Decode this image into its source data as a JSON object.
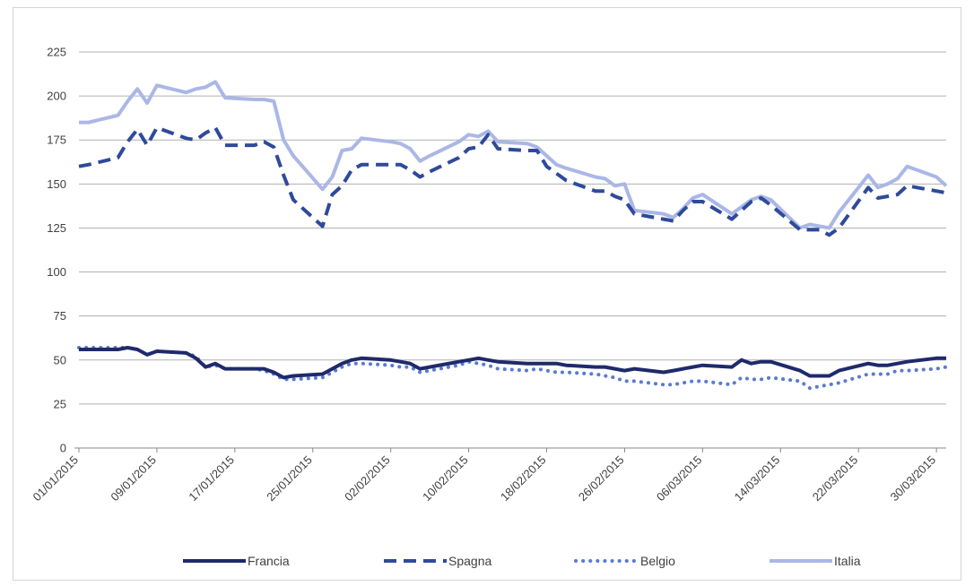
{
  "chart_data": {
    "type": "line",
    "title": "",
    "xlabel": "",
    "ylabel": "",
    "ylim": [
      0,
      225
    ],
    "y_ticks": [
      0,
      25,
      50,
      75,
      100,
      125,
      150,
      175,
      200,
      225
    ],
    "x_range": [
      "01/01/2015",
      "31/03/2015"
    ],
    "x_tick_labels": [
      "01/01/2015",
      "09/01/2015",
      "17/01/2015",
      "25/01/2015",
      "02/02/2015",
      "10/02/2015",
      "18/02/2015",
      "26/02/2015",
      "06/03/2015",
      "14/03/2015",
      "22/03/2015",
      "30/03/2015"
    ],
    "grid": "horizontal",
    "legend_position": "bottom",
    "series": [
      {
        "name": "Francia",
        "color": "#1f2a6b",
        "style": "solid",
        "points": [
          [
            "01/01/2015",
            56
          ],
          [
            "02/01/2015",
            56
          ],
          [
            "05/01/2015",
            56
          ],
          [
            "06/01/2015",
            57
          ],
          [
            "07/01/2015",
            56
          ],
          [
            "08/01/2015",
            53
          ],
          [
            "09/01/2015",
            55
          ],
          [
            "12/01/2015",
            54
          ],
          [
            "13/01/2015",
            51
          ],
          [
            "14/01/2015",
            46
          ],
          [
            "15/01/2015",
            48
          ],
          [
            "16/01/2015",
            45
          ],
          [
            "19/01/2015",
            45
          ],
          [
            "20/01/2015",
            45
          ],
          [
            "21/01/2015",
            43
          ],
          [
            "22/01/2015",
            40
          ],
          [
            "23/01/2015",
            41
          ],
          [
            "26/01/2015",
            42
          ],
          [
            "27/01/2015",
            45
          ],
          [
            "28/01/2015",
            48
          ],
          [
            "29/01/2015",
            50
          ],
          [
            "30/01/2015",
            51
          ],
          [
            "02/02/2015",
            50
          ],
          [
            "03/02/2015",
            49
          ],
          [
            "04/02/2015",
            48
          ],
          [
            "05/02/2015",
            45
          ],
          [
            "06/02/2015",
            46
          ],
          [
            "09/02/2015",
            49
          ],
          [
            "10/02/2015",
            50
          ],
          [
            "11/02/2015",
            51
          ],
          [
            "12/02/2015",
            50
          ],
          [
            "13/02/2015",
            49
          ],
          [
            "16/02/2015",
            48
          ],
          [
            "17/02/2015",
            48
          ],
          [
            "18/02/2015",
            48
          ],
          [
            "19/02/2015",
            48
          ],
          [
            "20/02/2015",
            47
          ],
          [
            "23/02/2015",
            46
          ],
          [
            "24/02/2015",
            46
          ],
          [
            "25/02/2015",
            45
          ],
          [
            "26/02/2015",
            44
          ],
          [
            "27/02/2015",
            45
          ],
          [
            "02/03/2015",
            43
          ],
          [
            "03/03/2015",
            44
          ],
          [
            "04/03/2015",
            45
          ],
          [
            "05/03/2015",
            46
          ],
          [
            "06/03/2015",
            47
          ],
          [
            "09/03/2015",
            46
          ],
          [
            "10/03/2015",
            50
          ],
          [
            "11/03/2015",
            48
          ],
          [
            "12/03/2015",
            49
          ],
          [
            "13/03/2015",
            49
          ],
          [
            "16/03/2015",
            44
          ],
          [
            "17/03/2015",
            41
          ],
          [
            "18/03/2015",
            41
          ],
          [
            "19/03/2015",
            41
          ],
          [
            "20/03/2015",
            44
          ],
          [
            "23/03/2015",
            48
          ],
          [
            "24/03/2015",
            47
          ],
          [
            "25/03/2015",
            47
          ],
          [
            "26/03/2015",
            48
          ],
          [
            "27/03/2015",
            49
          ],
          [
            "30/03/2015",
            51
          ],
          [
            "31/03/2015",
            51
          ]
        ]
      },
      {
        "name": "Spagna",
        "color": "#2e4a9a",
        "style": "dashed",
        "points": [
          [
            "01/01/2015",
            160
          ],
          [
            "02/01/2015",
            161
          ],
          [
            "05/01/2015",
            165
          ],
          [
            "06/01/2015",
            174
          ],
          [
            "07/01/2015",
            181
          ],
          [
            "08/01/2015",
            172
          ],
          [
            "09/01/2015",
            182
          ],
          [
            "12/01/2015",
            176
          ],
          [
            "13/01/2015",
            175
          ],
          [
            "14/01/2015",
            179
          ],
          [
            "15/01/2015",
            182
          ],
          [
            "16/01/2015",
            172
          ],
          [
            "19/01/2015",
            172
          ],
          [
            "20/01/2015",
            174
          ],
          [
            "21/01/2015",
            171
          ],
          [
            "22/01/2015",
            155
          ],
          [
            "23/01/2015",
            141
          ],
          [
            "26/01/2015",
            126
          ],
          [
            "27/01/2015",
            144
          ],
          [
            "28/01/2015",
            149
          ],
          [
            "29/01/2015",
            158
          ],
          [
            "30/01/2015",
            161
          ],
          [
            "02/02/2015",
            161
          ],
          [
            "03/02/2015",
            161
          ],
          [
            "04/02/2015",
            158
          ],
          [
            "05/02/2015",
            154
          ],
          [
            "06/02/2015",
            157
          ],
          [
            "09/02/2015",
            165
          ],
          [
            "10/02/2015",
            170
          ],
          [
            "11/02/2015",
            171
          ],
          [
            "12/02/2015",
            178
          ],
          [
            "13/02/2015",
            170
          ],
          [
            "16/02/2015",
            169
          ],
          [
            "17/02/2015",
            169
          ],
          [
            "18/02/2015",
            160
          ],
          [
            "19/02/2015",
            156
          ],
          [
            "20/02/2015",
            152
          ],
          [
            "23/02/2015",
            146
          ],
          [
            "24/02/2015",
            146
          ],
          [
            "25/02/2015",
            143
          ],
          [
            "26/02/2015",
            141
          ],
          [
            "27/02/2015",
            133
          ],
          [
            "02/03/2015",
            130
          ],
          [
            "03/03/2015",
            129
          ],
          [
            "04/03/2015",
            135
          ],
          [
            "05/03/2015",
            140
          ],
          [
            "06/03/2015",
            140
          ],
          [
            "09/03/2015",
            130
          ],
          [
            "10/03/2015",
            135
          ],
          [
            "11/03/2015",
            140
          ],
          [
            "12/03/2015",
            142
          ],
          [
            "13/03/2015",
            138
          ],
          [
            "16/03/2015",
            124
          ],
          [
            "17/03/2015",
            124
          ],
          [
            "18/03/2015",
            124
          ],
          [
            "19/03/2015",
            121
          ],
          [
            "20/03/2015",
            125
          ],
          [
            "23/03/2015",
            148
          ],
          [
            "24/03/2015",
            142
          ],
          [
            "25/03/2015",
            143
          ],
          [
            "26/03/2015",
            144
          ],
          [
            "27/03/2015",
            149
          ],
          [
            "30/03/2015",
            146
          ],
          [
            "31/03/2015",
            145
          ]
        ]
      },
      {
        "name": "Belgio",
        "color": "#5b7ad0",
        "style": "dotted",
        "points": [
          [
            "01/01/2015",
            57
          ],
          [
            "02/01/2015",
            57
          ],
          [
            "05/01/2015",
            57
          ],
          [
            "06/01/2015",
            57
          ],
          [
            "07/01/2015",
            56
          ],
          [
            "08/01/2015",
            53
          ],
          [
            "09/01/2015",
            55
          ],
          [
            "12/01/2015",
            54
          ],
          [
            "13/01/2015",
            52
          ],
          [
            "14/01/2015",
            46
          ],
          [
            "15/01/2015",
            47
          ],
          [
            "16/01/2015",
            45
          ],
          [
            "19/01/2015",
            45
          ],
          [
            "20/01/2015",
            44
          ],
          [
            "21/01/2015",
            42
          ],
          [
            "22/01/2015",
            39
          ],
          [
            "23/01/2015",
            39
          ],
          [
            "26/01/2015",
            40
          ],
          [
            "27/01/2015",
            43
          ],
          [
            "28/01/2015",
            46
          ],
          [
            "29/01/2015",
            48
          ],
          [
            "30/01/2015",
            48
          ],
          [
            "02/02/2015",
            47
          ],
          [
            "03/02/2015",
            46
          ],
          [
            "04/02/2015",
            46
          ],
          [
            "05/02/2015",
            43
          ],
          [
            "06/02/2015",
            44
          ],
          [
            "09/02/2015",
            47
          ],
          [
            "10/02/2015",
            49
          ],
          [
            "11/02/2015",
            48
          ],
          [
            "12/02/2015",
            47
          ],
          [
            "13/02/2015",
            45
          ],
          [
            "16/02/2015",
            44
          ],
          [
            "17/02/2015",
            45
          ],
          [
            "18/02/2015",
            44
          ],
          [
            "19/02/2015",
            43
          ],
          [
            "20/02/2015",
            43
          ],
          [
            "23/02/2015",
            42
          ],
          [
            "24/02/2015",
            41
          ],
          [
            "25/02/2015",
            40
          ],
          [
            "26/02/2015",
            38
          ],
          [
            "27/02/2015",
            38
          ],
          [
            "02/03/2015",
            36
          ],
          [
            "03/03/2015",
            36
          ],
          [
            "04/03/2015",
            37
          ],
          [
            "05/03/2015",
            38
          ],
          [
            "06/03/2015",
            38
          ],
          [
            "09/03/2015",
            36
          ],
          [
            "10/03/2015",
            40
          ],
          [
            "11/03/2015",
            39
          ],
          [
            "12/03/2015",
            39
          ],
          [
            "13/03/2015",
            40
          ],
          [
            "16/03/2015",
            38
          ],
          [
            "17/03/2015",
            34
          ],
          [
            "18/03/2015",
            35
          ],
          [
            "19/03/2015",
            36
          ],
          [
            "20/03/2015",
            37
          ],
          [
            "23/03/2015",
            42
          ],
          [
            "24/03/2015",
            42
          ],
          [
            "25/03/2015",
            42
          ],
          [
            "26/03/2015",
            44
          ],
          [
            "27/03/2015",
            44
          ],
          [
            "30/03/2015",
            45
          ],
          [
            "31/03/2015",
            46
          ]
        ]
      },
      {
        "name": "Italia",
        "color": "#aab7e6",
        "style": "solid",
        "points": [
          [
            "01/01/2015",
            185
          ],
          [
            "02/01/2015",
            185
          ],
          [
            "05/01/2015",
            189
          ],
          [
            "06/01/2015",
            197
          ],
          [
            "07/01/2015",
            204
          ],
          [
            "08/01/2015",
            196
          ],
          [
            "09/01/2015",
            206
          ],
          [
            "12/01/2015",
            202
          ],
          [
            "13/01/2015",
            204
          ],
          [
            "14/01/2015",
            205
          ],
          [
            "15/01/2015",
            208
          ],
          [
            "16/01/2015",
            199
          ],
          [
            "19/01/2015",
            198
          ],
          [
            "20/01/2015",
            198
          ],
          [
            "21/01/2015",
            197
          ],
          [
            "22/01/2015",
            175
          ],
          [
            "23/01/2015",
            166
          ],
          [
            "26/01/2015",
            147
          ],
          [
            "27/01/2015",
            154
          ],
          [
            "28/01/2015",
            169
          ],
          [
            "29/01/2015",
            170
          ],
          [
            "30/01/2015",
            176
          ],
          [
            "02/02/2015",
            174
          ],
          [
            "03/02/2015",
            173
          ],
          [
            "04/02/2015",
            170
          ],
          [
            "05/02/2015",
            163
          ],
          [
            "06/02/2015",
            166
          ],
          [
            "09/02/2015",
            174
          ],
          [
            "10/02/2015",
            178
          ],
          [
            "11/02/2015",
            177
          ],
          [
            "12/02/2015",
            180
          ],
          [
            "13/02/2015",
            174
          ],
          [
            "16/02/2015",
            173
          ],
          [
            "17/02/2015",
            171
          ],
          [
            "18/02/2015",
            166
          ],
          [
            "19/02/2015",
            161
          ],
          [
            "20/02/2015",
            159
          ],
          [
            "23/02/2015",
            154
          ],
          [
            "24/02/2015",
            153
          ],
          [
            "25/02/2015",
            149
          ],
          [
            "26/02/2015",
            150
          ],
          [
            "27/02/2015",
            135
          ],
          [
            "02/03/2015",
            133
          ],
          [
            "03/03/2015",
            131
          ],
          [
            "04/03/2015",
            136
          ],
          [
            "05/03/2015",
            142
          ],
          [
            "06/03/2015",
            144
          ],
          [
            "09/03/2015",
            133
          ],
          [
            "10/03/2015",
            137
          ],
          [
            "11/03/2015",
            141
          ],
          [
            "12/03/2015",
            143
          ],
          [
            "13/03/2015",
            141
          ],
          [
            "16/03/2015",
            125
          ],
          [
            "17/03/2015",
            127
          ],
          [
            "18/03/2015",
            126
          ],
          [
            "19/03/2015",
            125
          ],
          [
            "20/03/2015",
            134
          ],
          [
            "23/03/2015",
            155
          ],
          [
            "24/03/2015",
            148
          ],
          [
            "25/03/2015",
            150
          ],
          [
            "26/03/2015",
            153
          ],
          [
            "27/03/2015",
            160
          ],
          [
            "30/03/2015",
            154
          ],
          [
            "31/03/2015",
            149
          ]
        ]
      }
    ]
  }
}
